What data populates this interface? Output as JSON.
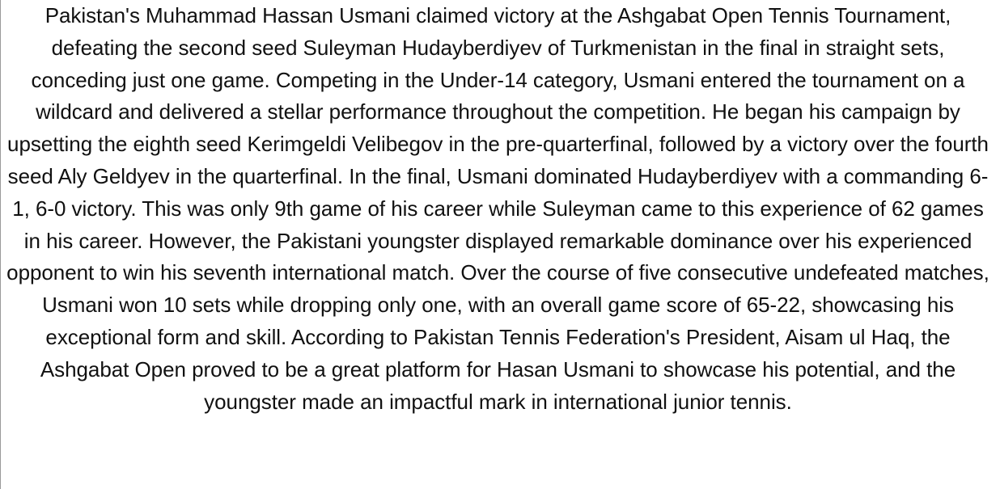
{
  "article": {
    "body": "Pakistan's Muhammad Hassan Usmani claimed victory at the Ashgabat Open Tennis Tournament, defeating the second seed Suleyman Hudayberdiyev of Turkmenistan in the final in straight sets, conceding just one game. Competing in the Under-14 category, Usmani entered the tournament on a wildcard and delivered a stellar performance throughout the competition. He began his campaign by upsetting the eighth seed Kerimgeldi Velibegov in the pre-quarterfinal, followed by a victory over the fourth seed Aly Geldyev in the quarterfinal. In the final, Usmani dominated Hudayberdiyev with a commanding 6-1, 6-0 victory. This was only 9th game of his career while Suleyman came to this experience of 62 games in his career. However, the Pakistani youngster displayed remarkable dominance over his experienced opponent to win his seventh international match. Over the course of five consecutive undefeated matches, Usmani won 10 sets while dropping only one, with an overall game score of 65-22, showcasing his exceptional form and skill. According to Pakistan Tennis Federation's President, Aisam ul Haq, the Ashgabat Open proved to be a great platform for Hasan Usmani to showcase his potential, and the youngster made an impactful mark in international junior tennis."
  }
}
